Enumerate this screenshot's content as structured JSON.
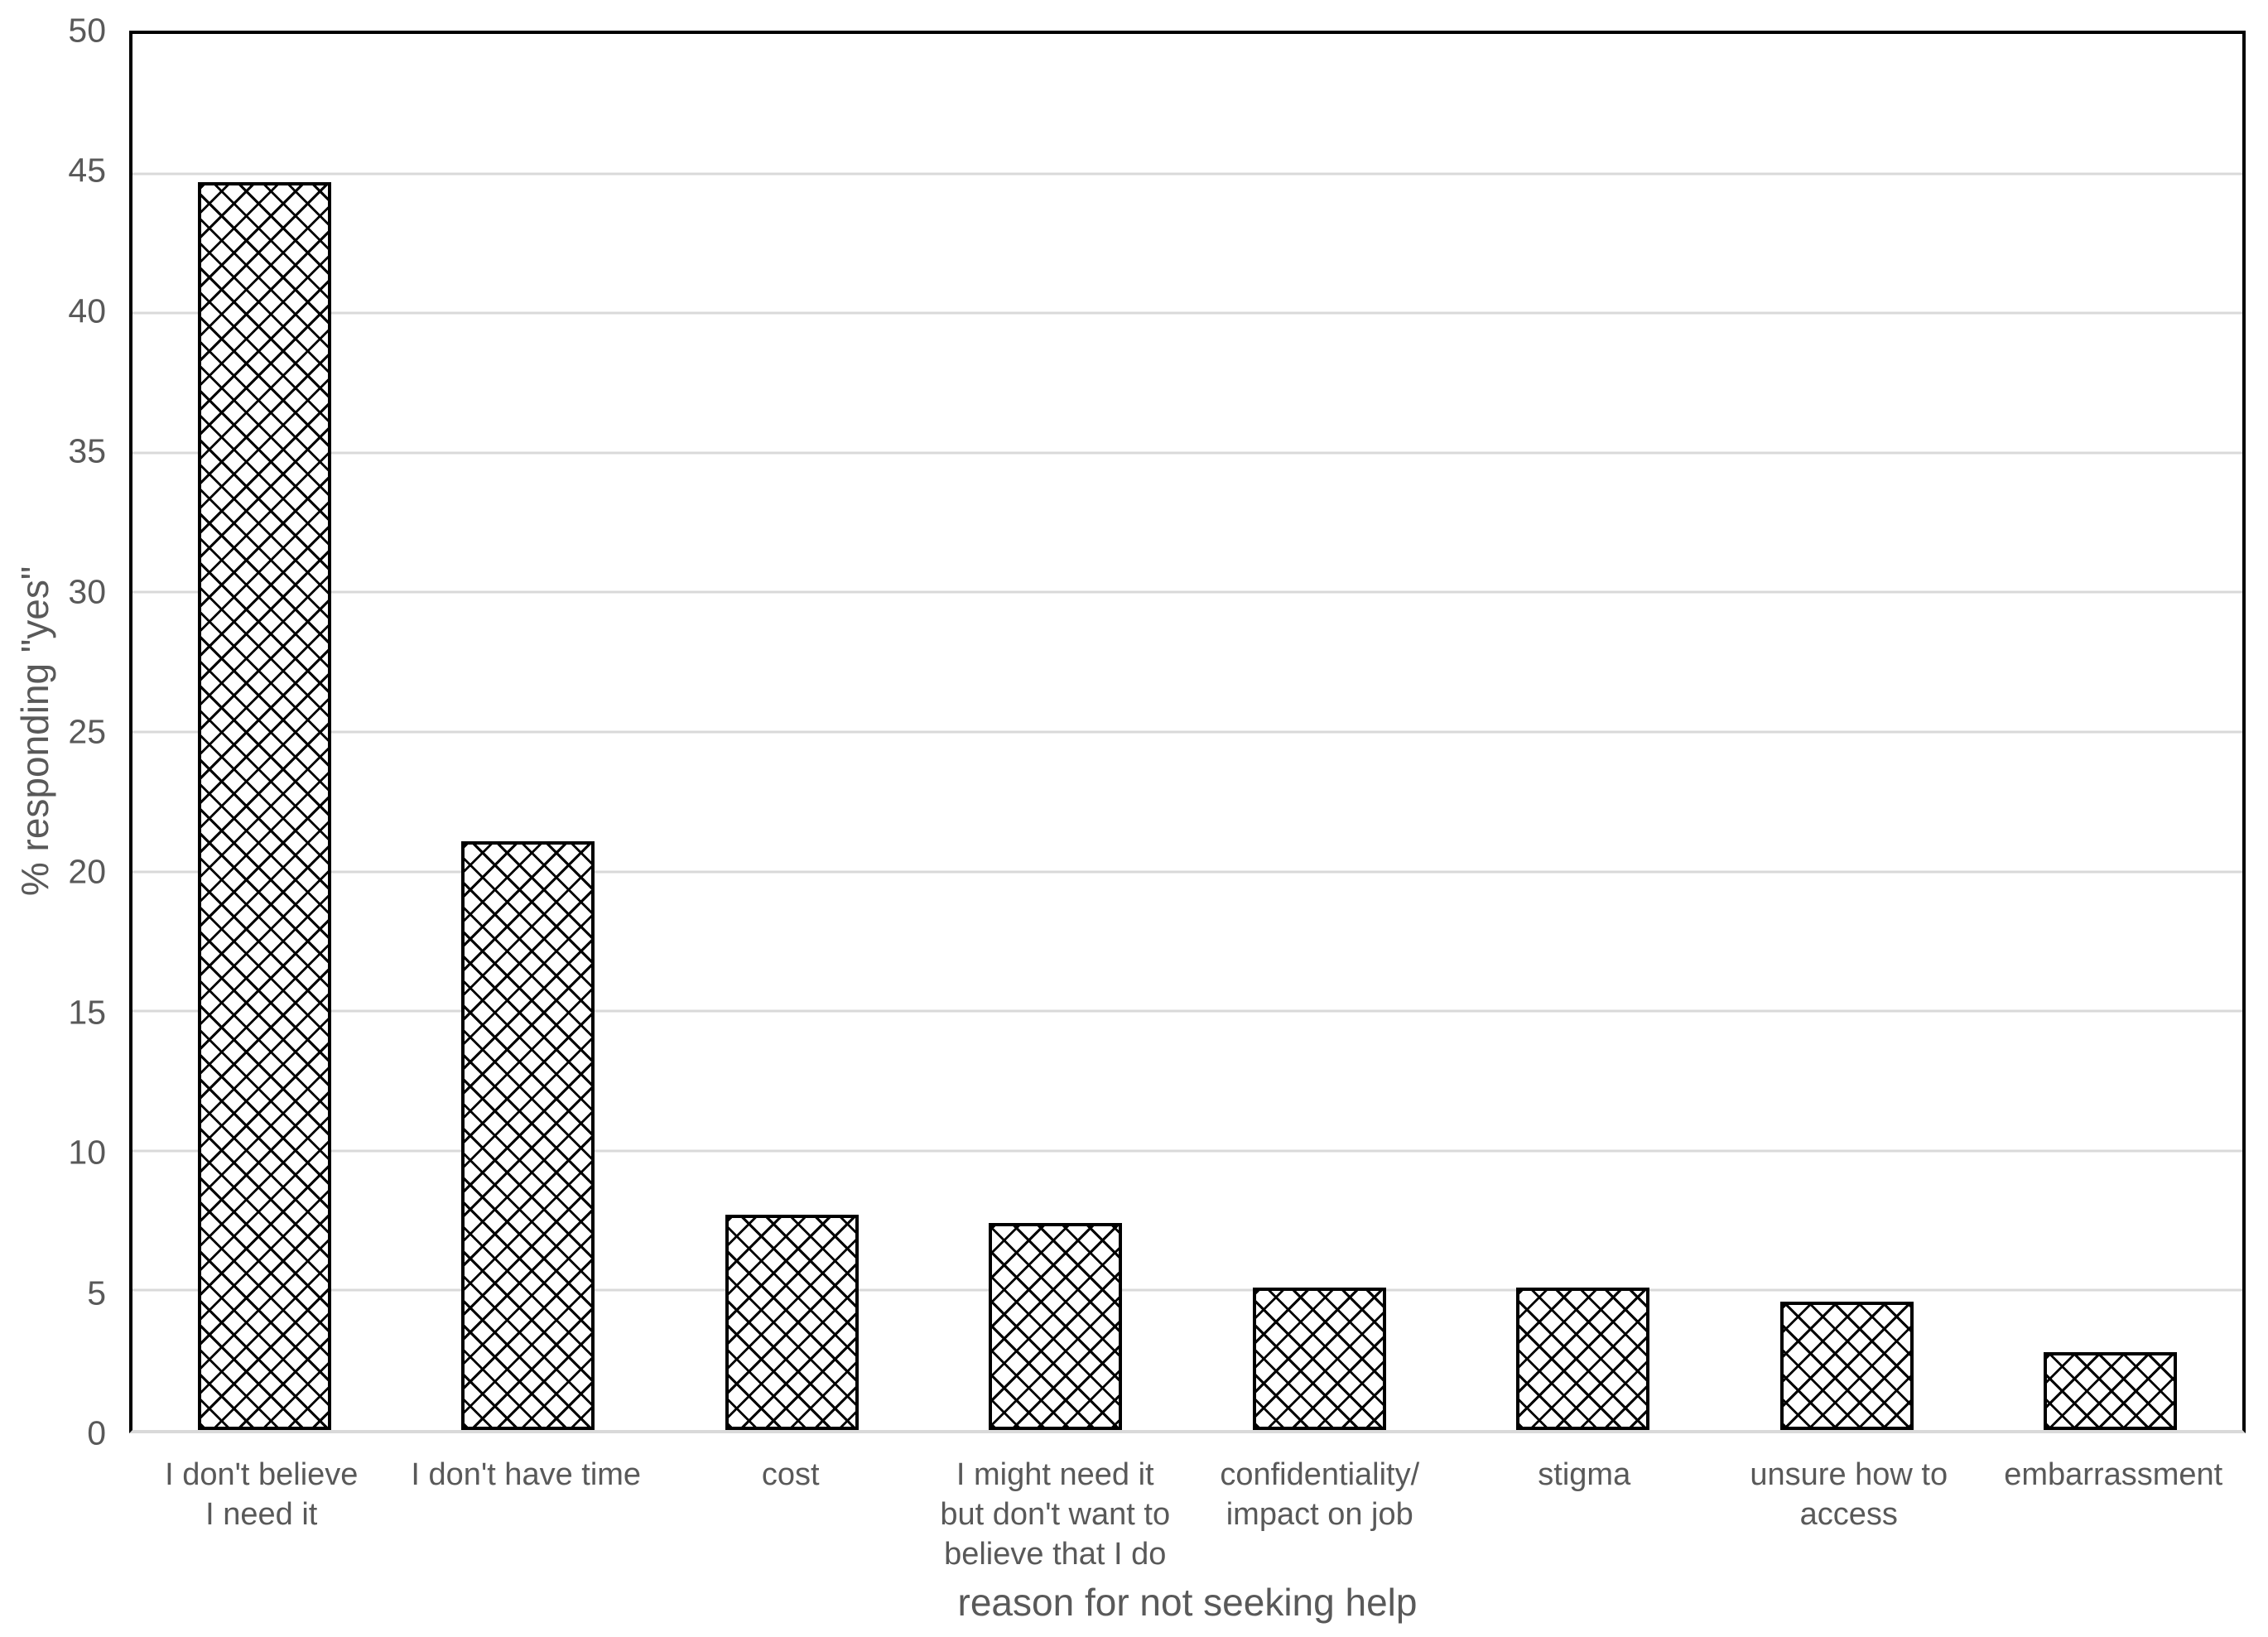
{
  "chart_data": {
    "type": "bar",
    "title": "",
    "xlabel": "reason for not seeking help",
    "ylabel": "% responding \"yes\"",
    "categories": [
      "I don't believe\nI need it",
      "I don't have time",
      "cost",
      "I might need it\nbut don't want to\nbelieve that I do",
      "confidentiality/\nimpact on job",
      "stigma",
      "unsure how to\naccess",
      "embarrassment"
    ],
    "values": [
      44.7,
      21.1,
      7.7,
      7.4,
      5.1,
      5.1,
      4.6,
      2.8
    ],
    "ylim": [
      0,
      50
    ],
    "yticks": [
      0,
      5,
      10,
      15,
      20,
      25,
      30,
      35,
      40,
      45,
      50
    ],
    "grid": true,
    "legend": "none",
    "bar_fill": "outlined-diamond crosshatch, black on white",
    "colors": {
      "bar_outline": "#000000",
      "bar_background": "#ffffff",
      "pattern_line": "#000000",
      "gridline": "#d9d9d9",
      "axis_line_left_top_right": "#000000",
      "axis_line_bottom": "#d9d9d9",
      "text": "#595959",
      "background": "#ffffff"
    }
  }
}
